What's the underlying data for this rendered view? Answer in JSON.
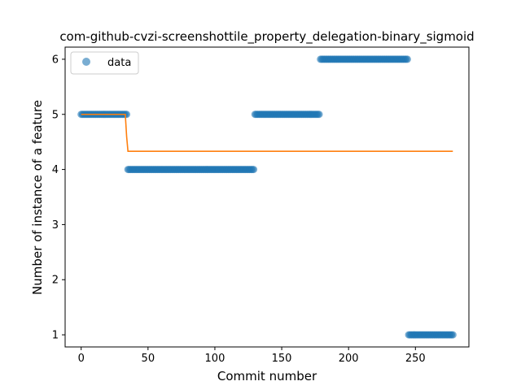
{
  "chart_data": {
    "type": "scatter",
    "title": "com-github-cvzi-screenshottile_property_delegation-binary_sigmoid",
    "xlabel": "Commit number",
    "ylabel": "Number of instance of a feature",
    "xlim": [
      -12,
      290
    ],
    "ylim": [
      0.78,
      6.22
    ],
    "xticks": [
      0,
      50,
      100,
      150,
      200,
      250
    ],
    "yticks": [
      1,
      2,
      3,
      4,
      5,
      6
    ],
    "grid": false,
    "legend": {
      "position": "top-left",
      "entries": [
        "data"
      ]
    },
    "series": [
      {
        "name": "data",
        "kind": "scatter",
        "color": "#1f77b4",
        "alpha": 0.6,
        "segments": [
          {
            "x_start": 0,
            "x_end": 34,
            "y": 5
          },
          {
            "x_start": 35,
            "x_end": 129,
            "y": 4
          },
          {
            "x_start": 130,
            "x_end": 178,
            "y": 5
          },
          {
            "x_start": 179,
            "x_end": 244,
            "y": 6
          },
          {
            "x_start": 245,
            "x_end": 278,
            "y": 1
          }
        ]
      },
      {
        "kind": "line",
        "color": "#ff7f0e",
        "points": [
          [
            0,
            5
          ],
          [
            33,
            5
          ],
          [
            34,
            4.6
          ],
          [
            35,
            4.33
          ],
          [
            278,
            4.33
          ]
        ]
      }
    ]
  }
}
